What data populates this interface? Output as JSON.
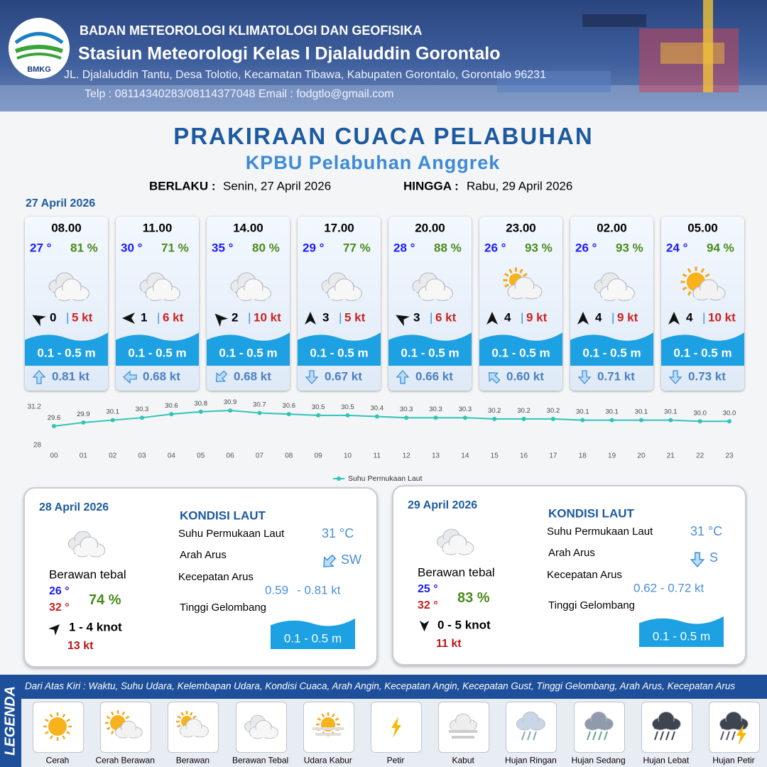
{
  "header": {
    "agency": "BADAN METEOROLOGI KLIMATOLOGI DAN GEOFISIKA",
    "station": "Stasiun Meteorologi Kelas I Djalaluddin Gorontalo",
    "address": "JL. Djalaluddin Tantu, Desa Tolotio, Kecamatan Tibawa, Kabupaten Gorontalo, Gorontalo 96231",
    "contact": "Telp : 08114340283/08114377048 Email : fodgtlo@gmail.com",
    "logo_text": "BMKG"
  },
  "title": "PRAKIRAAN CUACA PELABUHAN",
  "subtitle": "KPBU Pelabuhan Anggrek",
  "validity": {
    "from_label": "BERLAKU :",
    "from": "Senin, 27 April 2026",
    "to_label": "HINGGA :",
    "to": "Rabu, 29 April 2026"
  },
  "day1": {
    "date": "27 April 2026",
    "cards": [
      {
        "time": "08.00",
        "temp": "27 °",
        "humidity": "81 %",
        "wind": "0",
        "gust": "5 kt",
        "wave": "0.1 - 0.5 m",
        "current": "0.81 kt"
      },
      {
        "time": "11.00",
        "temp": "30 °",
        "humidity": "71 %",
        "wind": "1",
        "gust": "6 kt",
        "wave": "0.1 - 0.5 m",
        "current": "0.68 kt"
      },
      {
        "time": "14.00",
        "temp": "35 °",
        "humidity": "80 %",
        "wind": "2",
        "gust": "10 kt",
        "wave": "0.1 - 0.5 m",
        "current": "0.68 kt"
      },
      {
        "time": "17.00",
        "temp": "29 °",
        "humidity": "77 %",
        "wind": "3",
        "gust": "5 kt",
        "wave": "0.1 - 0.5 m",
        "current": "0.67 kt"
      },
      {
        "time": "20.00",
        "temp": "28 °",
        "humidity": "88 %",
        "wind": "3",
        "gust": "6 kt",
        "wave": "0.1 - 0.5 m",
        "current": "0.66 kt"
      },
      {
        "time": "23.00",
        "temp": "26 °",
        "humidity": "93 %",
        "wind": "4",
        "gust": "9 kt",
        "wave": "0.1 - 0.5 m",
        "current": "0.60 kt"
      },
      {
        "time": "02.00",
        "temp": "26 °",
        "humidity": "93 %",
        "wind": "4",
        "gust": "9 kt",
        "wave": "0.1 - 0.5 m",
        "current": "0.71 kt"
      },
      {
        "time": "05.00",
        "temp": "24 °",
        "humidity": "94 %",
        "wind": "4",
        "gust": "10 kt",
        "wave": "0.1 - 0.5 m",
        "current": "0.73 kt"
      }
    ]
  },
  "chart_data": {
    "type": "line",
    "categories": [
      "00",
      "01",
      "02",
      "03",
      "04",
      "05",
      "06",
      "07",
      "08",
      "09",
      "10",
      "11",
      "12",
      "13",
      "14",
      "15",
      "16",
      "17",
      "18",
      "19",
      "20",
      "21",
      "22",
      "23"
    ],
    "series": [
      {
        "name": "Suhu Permukaan Laut",
        "color": "#2ec4b6",
        "values": [
          29.6,
          29.9,
          30.1,
          30.3,
          30.6,
          30.8,
          30.9,
          30.7,
          30.6,
          30.5,
          30.5,
          30.4,
          30.3,
          30.3,
          30.3,
          30.2,
          30.2,
          30.2,
          30.1,
          30.1,
          30.1,
          30.1,
          30.0,
          30.0
        ],
        "value_labels": [
          "29.6",
          "29.9",
          "30.1",
          "30.3",
          "30.6",
          "30.8",
          "30.9",
          "30.7",
          "30.6",
          "30.5",
          "30.5",
          "30.4",
          "30.3",
          "30.3",
          "30.3",
          "30.2",
          "30.2",
          "30.2",
          "30.1",
          "30.1",
          "30.1",
          "30.1",
          "30.0",
          "30.0"
        ]
      }
    ],
    "ylim": [
      28,
      31.2
    ],
    "yticks": [
      28,
      31.2
    ],
    "legend": "bottom"
  },
  "days": [
    {
      "date": "28 April 2026",
      "sea_title": "KONDISI LAUT",
      "condition": "Berawan tebal",
      "tmin": "26 °",
      "tmax": "32 °",
      "humidity": "74 %",
      "wind": "1 - 4 knot",
      "gust": "13 kt",
      "sst_label": "Suhu Permukaan Laut",
      "sst": "31 °C",
      "dir_label": "Arah Arus",
      "dir": "SW",
      "speed_label": "Kecepatan Arus",
      "speed": [
        "0.59",
        "- 0.81 kt"
      ],
      "wave_label": "Tinggi Gelombang",
      "wave": "0.1 - 0.5 m"
    },
    {
      "date": "29 April 2026",
      "sea_title": "KONDISI LAUT",
      "condition": "Berawan tebal",
      "tmin": "25 °",
      "tmax": "32 °",
      "humidity": "83 %",
      "wind": "0 - 5 knot",
      "gust": "11 kt",
      "sst_label": "Suhu Permukaan Laut",
      "sst": "31 °C",
      "dir_label": "Arah Arus",
      "dir": "S",
      "speed_label": "Kecepatan Arus",
      "speed": [
        "0.62 - 0.72 kt"
      ],
      "wave_label": "Tinggi Gelombang",
      "wave": "0.1 - 0.5 m"
    }
  ],
  "legend": {
    "title": "LEGENDA",
    "description": "Dari Atas Kiri : Waktu, Suhu Udara, Kelembapan Udara, Kondisi Cuaca, Arah Angin, Kecepatan Angin, Kecepatan Gust, Tinggi Gelombang, Arah Arus, Kecepatan Arus",
    "items": [
      "Cerah",
      "Cerah Berawan",
      "Berawan",
      "Berawan Tebal",
      "Udara Kabur",
      "Petir",
      "Kabut",
      "Hujan Ringan",
      "Hujan Sedang",
      "Hujan Lebat",
      "Hujan Petir"
    ]
  }
}
